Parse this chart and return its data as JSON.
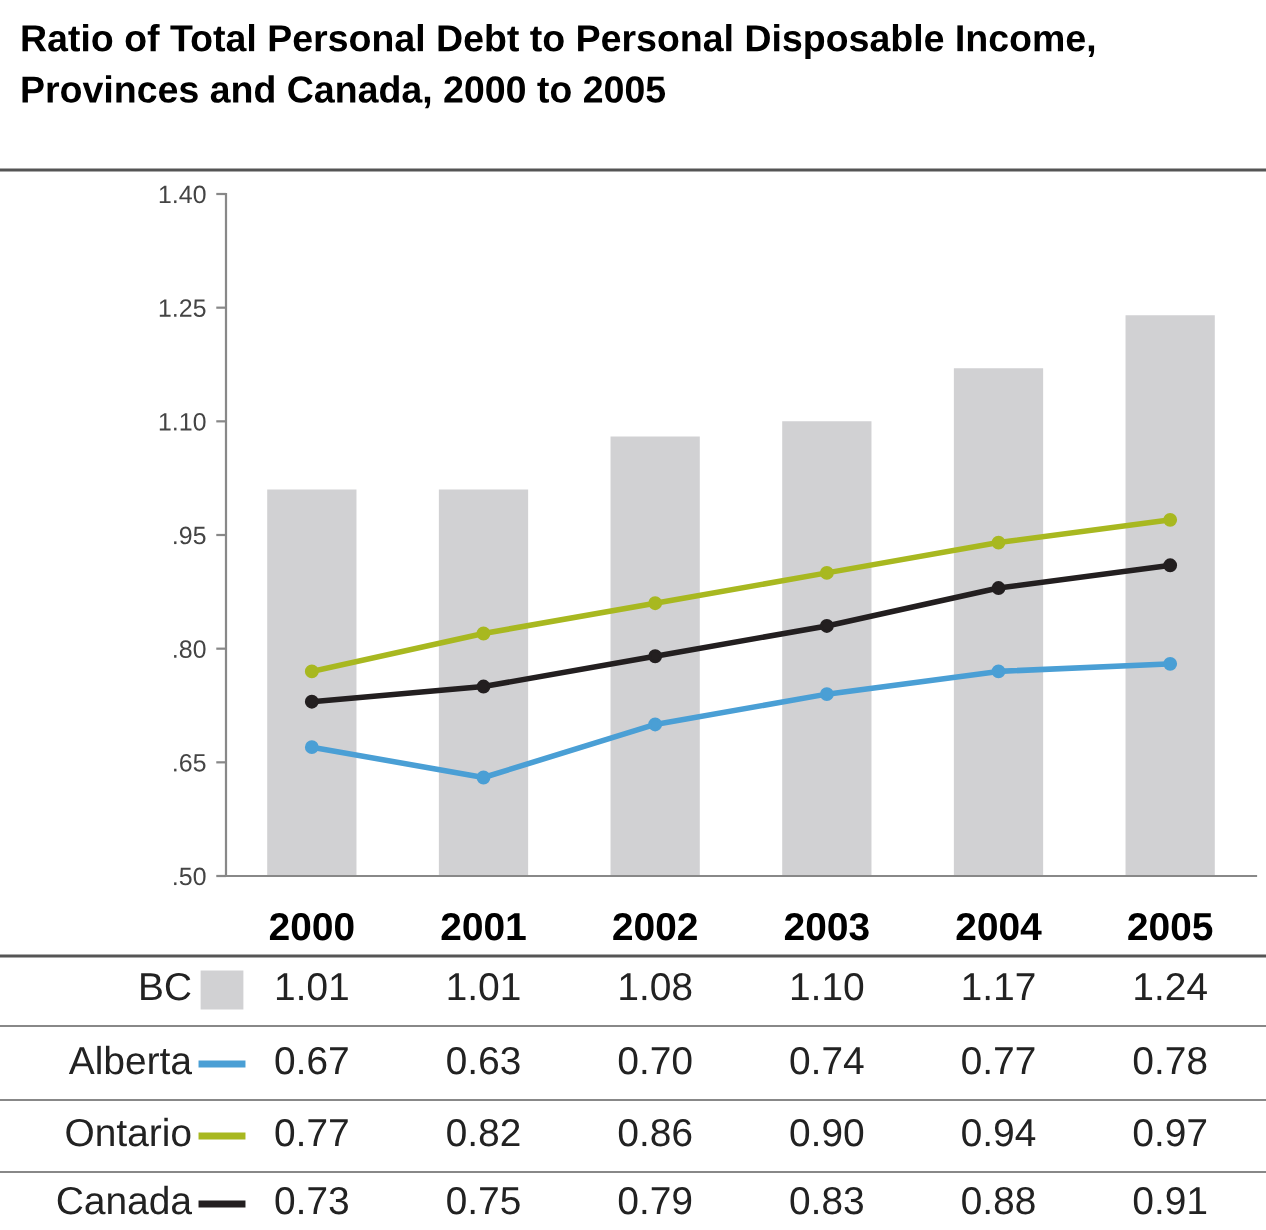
{
  "chart_data": {
    "type": "bar",
    "title": "Ratio of Total Personal Debt to Personal Disposable Income,\nProvinces and Canada, 2000 to 2005",
    "categories": [
      "2000",
      "2001",
      "2002",
      "2003",
      "2004",
      "2005"
    ],
    "series": [
      {
        "name": "BC",
        "color": "#d1d1d3",
        "values": [
          1.01,
          1.01,
          1.08,
          1.1,
          1.17,
          1.24
        ],
        "value_labels": [
          "1.01",
          "1.01",
          "1.08",
          "1.10",
          "1.17",
          "1.24"
        ]
      },
      {
        "name": "Alberta",
        "type": "line",
        "color": "#4a9fd5",
        "values": [
          0.67,
          0.63,
          0.7,
          0.74,
          0.77,
          0.78
        ],
        "value_labels": [
          "0.67",
          "0.63",
          "0.70",
          "0.74",
          "0.77",
          "0.78"
        ]
      },
      {
        "name": "Ontario",
        "type": "line",
        "color": "#a8b820",
        "values": [
          0.77,
          0.82,
          0.86,
          0.9,
          0.94,
          0.97
        ],
        "value_labels": [
          "0.77",
          "0.82",
          "0.86",
          "0.90",
          "0.94",
          "0.97"
        ]
      },
      {
        "name": "Canada",
        "type": "line",
        "color": "#231f20",
        "values": [
          0.73,
          0.75,
          0.79,
          0.83,
          0.88,
          0.91
        ],
        "value_labels": [
          "0.73",
          "0.75",
          "0.79",
          "0.83",
          "0.88",
          "0.91"
        ]
      }
    ],
    "ylim": [
      0.5,
      1.4
    ],
    "yticks": [
      {
        "value": 0.5,
        "label": ".50"
      },
      {
        "value": 0.65,
        "label": ".65"
      },
      {
        "value": 0.8,
        "label": ".80"
      },
      {
        "value": 0.95,
        "label": ".95"
      },
      {
        "value": 1.1,
        "label": "1.10"
      },
      {
        "value": 1.25,
        "label": "1.25"
      },
      {
        "value": 1.4,
        "label": "1.40"
      }
    ],
    "marker": "circle",
    "line_style": "solid",
    "legend": "bottom",
    "grid": false
  }
}
